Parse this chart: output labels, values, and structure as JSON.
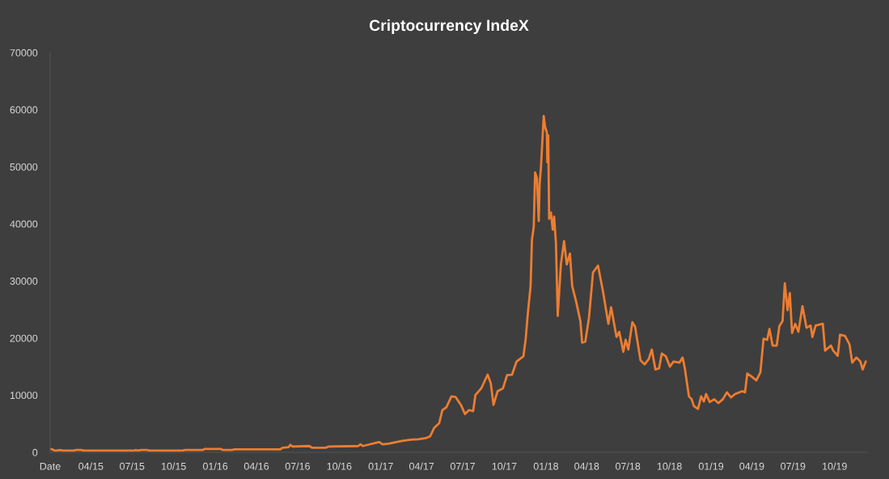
{
  "chart_data": {
    "type": "line",
    "title": "Criptocurrency IndeX",
    "color": "#ed7d31",
    "x": [
      "2015-01-01",
      "2015-01-06",
      "2015-01-11",
      "2015-01-16",
      "2015-01-22",
      "2015-01-29",
      "2015-02-23",
      "2015-02-26",
      "2015-03-11",
      "2015-03-16",
      "2015-07-06",
      "2015-07-09",
      "2015-07-14",
      "2015-07-21",
      "2015-08-03",
      "2015-08-09",
      "2015-10-21",
      "2015-10-26",
      "2015-12-04",
      "2015-12-09",
      "2016-01-13",
      "2016-01-18",
      "2016-02-07",
      "2016-02-12",
      "2016-05-23",
      "2016-05-29",
      "2016-06-11",
      "2016-06-15",
      "2016-06-20",
      "2016-07-27",
      "2016-08-02",
      "2016-09-01",
      "2016-09-07",
      "2016-11-12",
      "2016-11-17",
      "2016-11-22",
      "2016-12-28",
      "2017-01-05",
      "2017-01-18",
      "2017-02-17",
      "2017-03-09",
      "2017-03-25",
      "2017-04-11",
      "2017-04-20",
      "2017-04-29",
      "2017-05-10",
      "2017-05-17",
      "2017-05-26",
      "2017-06-06",
      "2017-06-15",
      "2017-06-27",
      "2017-07-06",
      "2017-07-15",
      "2017-07-24",
      "2017-07-29",
      "2017-08-11",
      "2017-08-25",
      "2017-09-01",
      "2017-09-07",
      "2017-09-16",
      "2017-09-28",
      "2017-10-07",
      "2017-10-18",
      "2017-10-28",
      "2017-11-12",
      "2017-11-17",
      "2017-11-22",
      "2017-11-28",
      "2017-12-01",
      "2017-12-05",
      "2017-12-08",
      "2017-12-12",
      "2017-12-16",
      "2017-12-18",
      "2017-12-21",
      "2017-12-27",
      "2017-12-30",
      "2018-01-03",
      "2018-01-04",
      "2018-01-06",
      "2018-01-08",
      "2018-01-12",
      "2018-01-16",
      "2018-01-19",
      "2018-01-23",
      "2018-01-27",
      "2018-02-03",
      "2018-02-10",
      "2018-02-16",
      "2018-02-23",
      "2018-02-28",
      "2018-03-09",
      "2018-03-18",
      "2018-03-22",
      "2018-03-29",
      "2018-04-06",
      "2018-04-15",
      "2018-04-26",
      "2018-05-07",
      "2018-05-19",
      "2018-05-25",
      "2018-06-06",
      "2018-06-12",
      "2018-06-21",
      "2018-06-26",
      "2018-07-02",
      "2018-07-11",
      "2018-07-17",
      "2018-07-29",
      "2018-08-07",
      "2018-08-16",
      "2018-08-23",
      "2018-08-31",
      "2018-09-08",
      "2018-09-14",
      "2018-09-23",
      "2018-10-02",
      "2018-10-10",
      "2018-10-23",
      "2018-10-30",
      "2018-11-04",
      "2018-11-13",
      "2018-11-19",
      "2018-11-24",
      "2018-12-03",
      "2018-12-10",
      "2018-12-16",
      "2018-12-21",
      "2018-12-29",
      "2019-01-08",
      "2019-01-17",
      "2019-01-27",
      "2019-02-05",
      "2019-02-14",
      "2019-02-23",
      "2019-03-11",
      "2019-03-17",
      "2019-03-22",
      "2019-03-31",
      "2019-04-11",
      "2019-04-20",
      "2019-04-27",
      "2019-05-05",
      "2019-05-10",
      "2019-05-17",
      "2019-05-26",
      "2019-06-01",
      "2019-06-08",
      "2019-06-13",
      "2019-06-19",
      "2019-06-24",
      "2019-06-29",
      "2019-07-06",
      "2019-07-13",
      "2019-07-22",
      "2019-07-31",
      "2019-08-09",
      "2019-08-13",
      "2019-08-20",
      "2019-09-05",
      "2019-09-10",
      "2019-09-23",
      "2019-09-28",
      "2019-10-08",
      "2019-10-13",
      "2019-10-24",
      "2019-11-03",
      "2019-11-09",
      "2019-11-18",
      "2019-11-27",
      "2019-12-02",
      "2019-12-09"
    ],
    "values": [
      600,
      500,
      300,
      300,
      400,
      300,
      300,
      400,
      400,
      300,
      300,
      400,
      300,
      400,
      400,
      300,
      300,
      400,
      400,
      600,
      600,
      400,
      400,
      500,
      500,
      800,
      900,
      1300,
      1000,
      1100,
      800,
      800,
      1000,
      1100,
      1400,
      1100,
      1800,
      1400,
      1500,
      2000,
      2200,
      2300,
      2500,
      2800,
      4300,
      5100,
      7400,
      7900,
      9800,
      9700,
      8300,
      6700,
      7400,
      7200,
      10000,
      11200,
      13600,
      12100,
      8300,
      10700,
      11200,
      13500,
      13600,
      15900,
      16800,
      19700,
      24400,
      29100,
      37200,
      39500,
      49000,
      48000,
      40500,
      47000,
      50000,
      58900,
      57000,
      56000,
      50800,
      55500,
      40900,
      42000,
      39000,
      41300,
      36700,
      23900,
      32900,
      37000,
      32900,
      34800,
      29100,
      26300,
      23000,
      19200,
      19400,
      23500,
      31500,
      32700,
      28200,
      22500,
      25400,
      20200,
      21100,
      17600,
      19700,
      18000,
      22800,
      22000,
      16100,
      15400,
      16300,
      18000,
      14500,
      14700,
      17300,
      16800,
      15000,
      15900,
      15700,
      16600,
      14700,
      9800,
      9300,
      8100,
      7600,
      9800,
      8900,
      10200,
      8800,
      9300,
      8600,
      9300,
      10500,
      9600,
      10200,
      10700,
      10500,
      13800,
      13300,
      12600,
      14000,
      19900,
      19700,
      21600,
      18700,
      18700,
      22100,
      23000,
      29600,
      24900,
      27900,
      20900,
      22500,
      21100,
      25600,
      21800,
      22200,
      20200,
      22200,
      22500,
      17800,
      18700,
      17800,
      16900,
      20600,
      20400,
      18900,
      15700,
      16600,
      15900,
      14500,
      15900
    ],
    "xlim": [
      "2015-01-01",
      "2019-12-12"
    ],
    "xticks": [
      {
        "value": "2015-01-01",
        "label": "Date"
      },
      {
        "value": "2015-04-01",
        "label": "04/15"
      },
      {
        "value": "2015-07-01",
        "label": "07/15"
      },
      {
        "value": "2015-10-01",
        "label": "10/15"
      },
      {
        "value": "2016-01-01",
        "label": "01/16"
      },
      {
        "value": "2016-04-01",
        "label": "04/16"
      },
      {
        "value": "2016-07-01",
        "label": "07/16"
      },
      {
        "value": "2016-10-01",
        "label": "10/16"
      },
      {
        "value": "2017-01-01",
        "label": "01/17"
      },
      {
        "value": "2017-04-01",
        "label": "04/17"
      },
      {
        "value": "2017-07-01",
        "label": "07/17"
      },
      {
        "value": "2017-10-01",
        "label": "10/17"
      },
      {
        "value": "2018-01-01",
        "label": "01/18"
      },
      {
        "value": "2018-04-01",
        "label": "04/18"
      },
      {
        "value": "2018-07-01",
        "label": "07/18"
      },
      {
        "value": "2018-10-01",
        "label": "10/18"
      },
      {
        "value": "2019-01-01",
        "label": "01/19"
      },
      {
        "value": "2019-04-01",
        "label": "04/19"
      },
      {
        "value": "2019-07-01",
        "label": "07/19"
      },
      {
        "value": "2019-10-01",
        "label": "10/19"
      }
    ],
    "ylim": [
      0,
      70000
    ],
    "yticks": [
      0,
      10000,
      20000,
      30000,
      40000,
      50000,
      60000,
      70000
    ]
  }
}
